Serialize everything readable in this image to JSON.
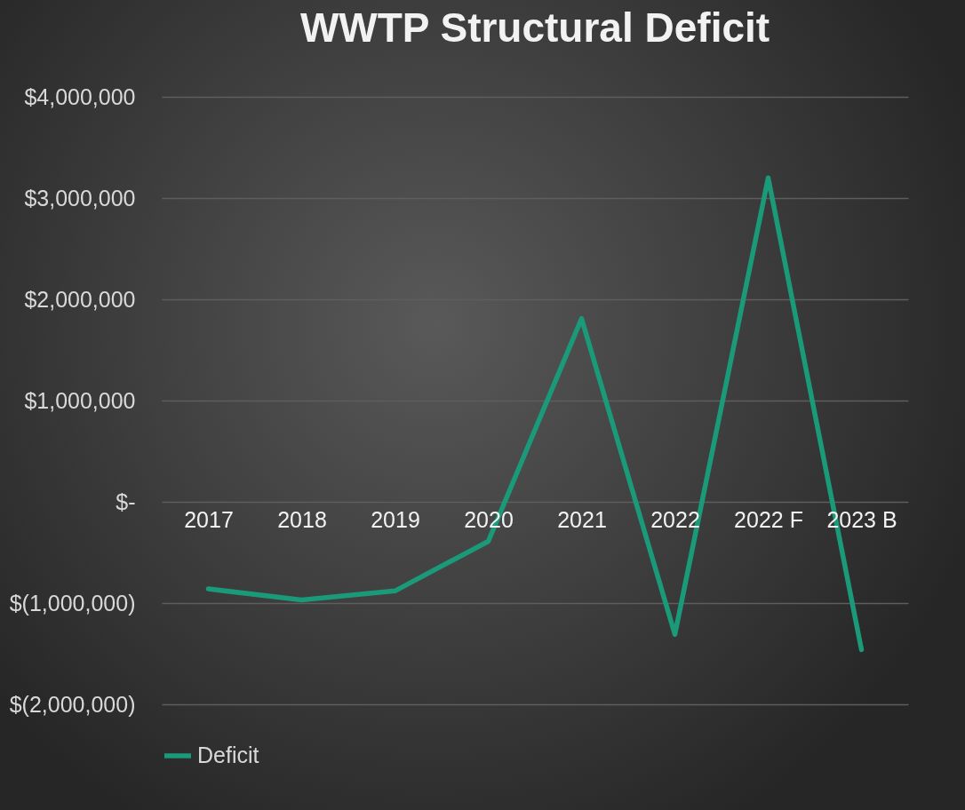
{
  "chart_data": {
    "type": "line",
    "title": "WWTP Structural Deficit",
    "categories": [
      "2017",
      "2018",
      "2019",
      "2020",
      "2021",
      "2022",
      "2022 F",
      "2023 B"
    ],
    "series": [
      {
        "name": "Deficit",
        "color": "#1a9a78",
        "values": [
          -860000,
          -970000,
          -880000,
          -390000,
          1810000,
          -1310000,
          3200000,
          -1460000
        ]
      }
    ],
    "ylim": [
      -2000000,
      4000000
    ],
    "yticks": [
      {
        "value": -2000000,
        "label": "$(2,000,000)"
      },
      {
        "value": -1000000,
        "label": "$(1,000,000)"
      },
      {
        "value": 0,
        "label": "$-"
      },
      {
        "value": 1000000,
        "label": "$1,000,000"
      },
      {
        "value": 2000000,
        "label": "$2,000,000"
      },
      {
        "value": 3000000,
        "label": "$3,000,000"
      },
      {
        "value": 4000000,
        "label": "$4,000,000"
      }
    ],
    "grid": "y",
    "legend": "bottom"
  }
}
